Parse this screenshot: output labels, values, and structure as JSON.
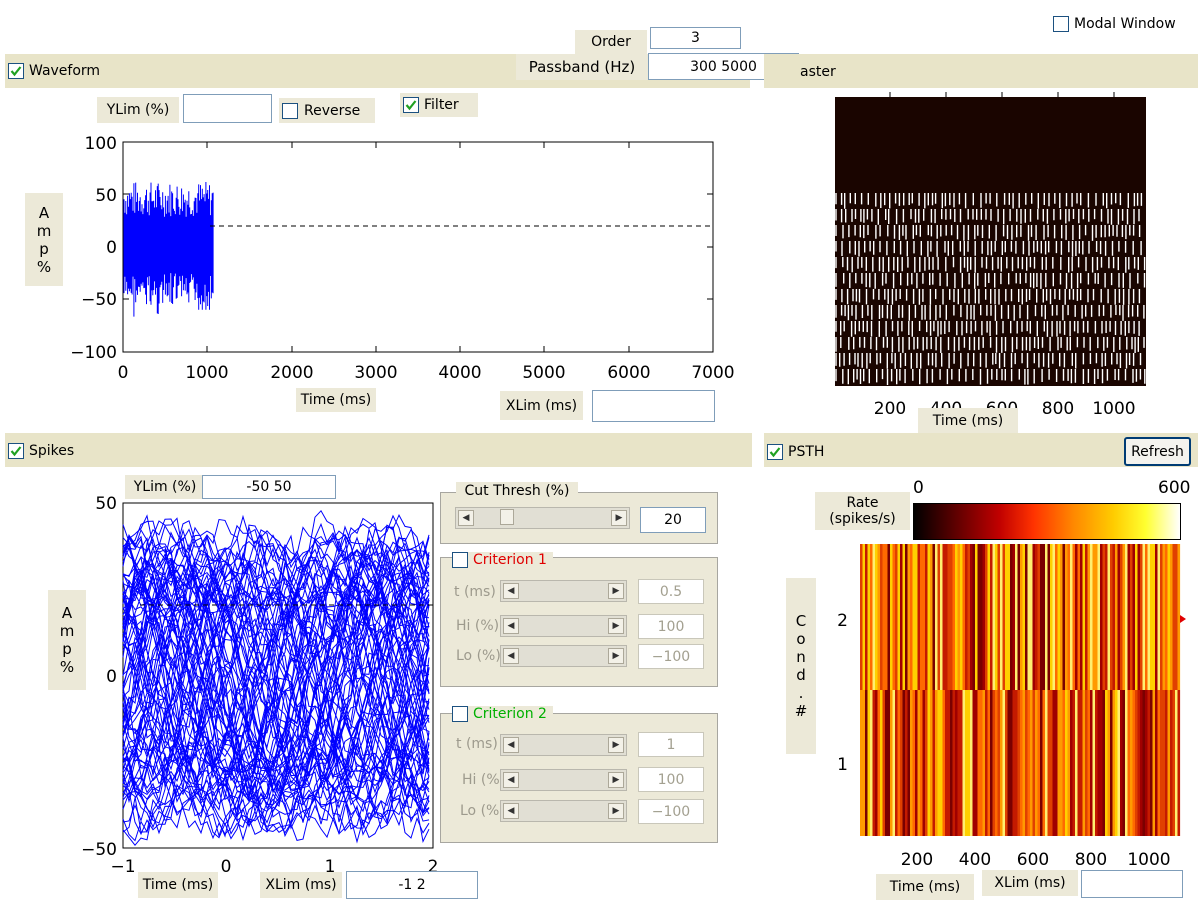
{
  "top": {
    "modal_window_label": "Modal Window",
    "order_label": "Order",
    "order_value": "3",
    "passband_label": "Passband (Hz)",
    "passband_value": "300 5000"
  },
  "waveform": {
    "checkbox_label": "Waveform",
    "ylim_label": "YLim (%)",
    "ylim_value": "",
    "reverse_label": "Reverse",
    "filter_label": "Filter",
    "ylabel_chars": [
      "A",
      "m",
      "p",
      "%"
    ],
    "xlabel": "Time (ms)",
    "xlim_label": "XLim (ms)",
    "xlim_value": "",
    "yticks": [
      "100",
      "50",
      "0",
      "−50",
      "−100"
    ],
    "xticks": [
      "0",
      "1000",
      "2000",
      "3000",
      "4000",
      "5000",
      "6000",
      "7000"
    ]
  },
  "raster": {
    "header_label": "aster",
    "xticks": [
      "200",
      "400",
      "600",
      "800",
      "1000"
    ],
    "xlabel": "Time (ms)"
  },
  "spikes": {
    "checkbox_label": "Spikes",
    "ylim_label": "YLim (%)",
    "ylim_value": "-50  50",
    "ylabel_chars": [
      "A",
      "m",
      "p",
      "%"
    ],
    "yticks": [
      "50",
      "0",
      "−50"
    ],
    "xticks": [
      "−1",
      "0",
      "1",
      "2"
    ],
    "xlabel": "Time (ms)",
    "xlim_label": "XLim (ms)",
    "xlim_value": "-1  2"
  },
  "cut_thresh": {
    "title": "Cut Thresh (%)",
    "value": "20"
  },
  "criterion1": {
    "title": "Criterion 1",
    "title_color": "#e00000",
    "t_label": "t (ms)",
    "t_value": "0.5",
    "hi_label": "Hi (%)",
    "hi_value": "100",
    "lo_label": "Lo (%)",
    "lo_value": "−100"
  },
  "criterion2": {
    "title": "Criterion 2",
    "title_color": "#00b000",
    "t_label": "t (ms)",
    "t_value": "1",
    "hi_label": "Hi (%)",
    "hi_value": "100",
    "lo_label": "Lo (%)",
    "lo_value": "−100"
  },
  "psth": {
    "checkbox_label": "PSTH",
    "refresh_label": "Refresh",
    "rate_label_line1": "Rate",
    "rate_label_line2": "(spikes/s)",
    "colorbar_min": "0",
    "colorbar_max": "600",
    "ylabel_chars": [
      "C",
      "o",
      "n",
      "d",
      ".",
      "",
      "#"
    ],
    "yticks": [
      "2",
      "1"
    ],
    "xticks": [
      "200",
      "400",
      "600",
      "800",
      "1000"
    ],
    "xlabel": "Time (ms)",
    "xlim_label": "XLim (ms)",
    "xlim_value": ""
  },
  "colors": {
    "panel_bar": "#e8e4c8",
    "spike_trace": "#0000ff",
    "check_mark": "#21a121"
  }
}
